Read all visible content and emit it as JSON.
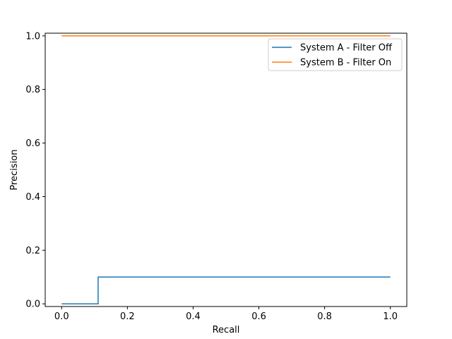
{
  "chart_data": {
    "type": "line",
    "step": true,
    "xlabel": "Recall",
    "ylabel": "Precision",
    "xlim": [
      -0.05,
      1.05
    ],
    "ylim": [
      -0.01,
      1.01
    ],
    "xticks": [
      0.0,
      0.2,
      0.4,
      0.6,
      0.8,
      1.0
    ],
    "yticks": [
      0.0,
      0.2,
      0.4,
      0.6,
      0.8,
      1.0
    ],
    "xtick_labels": [
      "0.0",
      "0.2",
      "0.4",
      "0.6",
      "0.8",
      "1.0"
    ],
    "ytick_labels": [
      "0.0",
      "0.2",
      "0.4",
      "0.6",
      "0.8",
      "1.0"
    ],
    "grid": false,
    "legend_position": "upper right",
    "series": [
      {
        "name": "System A - Filter Off",
        "color": "#1f77b4",
        "x": [
          0.0,
          0.111,
          0.111,
          1.0
        ],
        "y": [
          0.0,
          0.0,
          0.1,
          0.1
        ]
      },
      {
        "name": "System B - Filter On",
        "color": "#ff7f0e",
        "x": [
          0.0,
          1.0
        ],
        "y": [
          1.0,
          1.0
        ]
      }
    ]
  }
}
